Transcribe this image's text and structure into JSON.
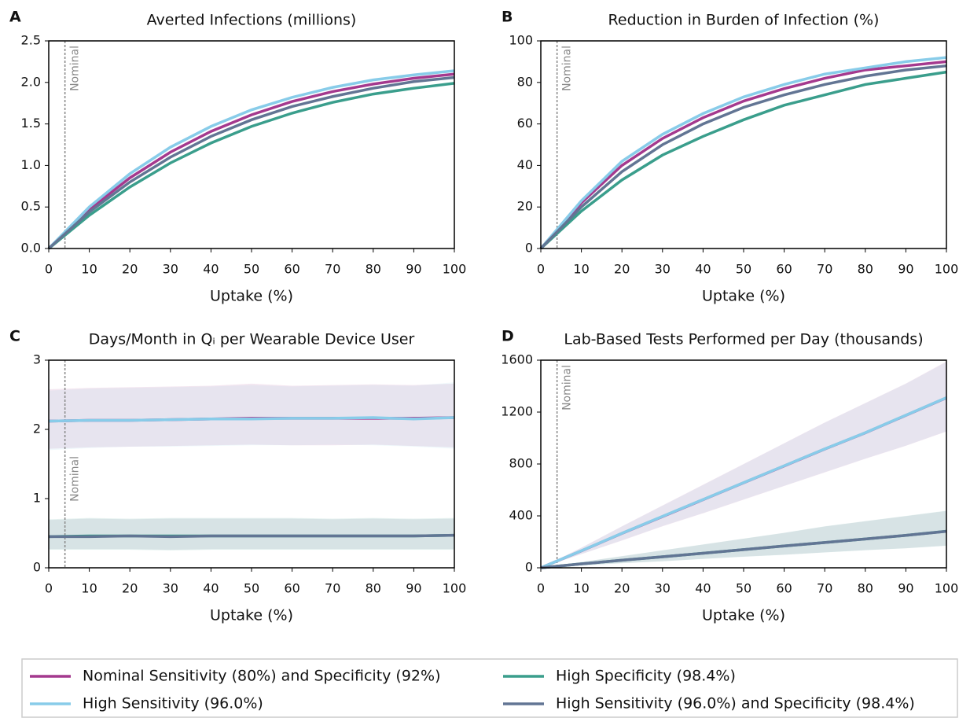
{
  "chart_data": [
    {
      "type": "line",
      "label": "A",
      "title": "Averted Infections (millions)",
      "xlabel": "Uptake (%)",
      "annotation": {
        "x": 4,
        "text": "Nominal"
      },
      "x": [
        0,
        10,
        20,
        30,
        40,
        50,
        60,
        70,
        80,
        90,
        100
      ],
      "xlim": [
        0,
        100
      ],
      "xticks": [
        0,
        10,
        20,
        30,
        40,
        50,
        60,
        70,
        80,
        90,
        100
      ],
      "ylim": [
        0,
        2.5
      ],
      "yticks": [
        {
          "value": 0,
          "label": "0.0"
        },
        0.5,
        {
          "value": 1,
          "label": "1.0"
        },
        1.5,
        {
          "value": 2,
          "label": "2.0"
        },
        2.5
      ],
      "series": [
        {
          "values": [
            0,
            0.47,
            0.85,
            1.16,
            1.41,
            1.61,
            1.77,
            1.89,
            1.98,
            2.05,
            2.1
          ]
        },
        {
          "values": [
            0,
            0.5,
            0.9,
            1.22,
            1.47,
            1.67,
            1.82,
            1.94,
            2.03,
            2.09,
            2.14
          ]
        },
        {
          "values": [
            0,
            0.4,
            0.74,
            1.03,
            1.27,
            1.47,
            1.63,
            1.76,
            1.86,
            1.93,
            1.99
          ]
        },
        {
          "values": [
            0,
            0.44,
            0.8,
            1.1,
            1.35,
            1.55,
            1.71,
            1.83,
            1.93,
            2.01,
            2.06
          ]
        }
      ]
    },
    {
      "type": "line",
      "label": "B",
      "title": "Reduction in Burden of Infection (%)",
      "xlabel": "Uptake (%)",
      "annotation": {
        "x": 4,
        "text": "Nominal"
      },
      "x": [
        0,
        10,
        20,
        30,
        40,
        50,
        60,
        70,
        80,
        90,
        100
      ],
      "xlim": [
        0,
        100
      ],
      "xticks": [
        0,
        10,
        20,
        30,
        40,
        50,
        60,
        70,
        80,
        90,
        100
      ],
      "ylim": [
        0,
        100
      ],
      "yticks": [
        0,
        20,
        40,
        60,
        80,
        100
      ],
      "series": [
        {
          "values": [
            0,
            22,
            40,
            53,
            63,
            71,
            77,
            82,
            86,
            88,
            90
          ]
        },
        {
          "values": [
            0,
            23,
            42,
            55,
            65,
            73,
            79,
            84,
            87,
            90,
            92
          ]
        },
        {
          "values": [
            0,
            18,
            33,
            45,
            54,
            62,
            69,
            74,
            79,
            82,
            85
          ]
        },
        {
          "values": [
            0,
            20,
            37,
            50,
            60,
            68,
            74,
            79,
            83,
            86,
            88
          ]
        }
      ]
    },
    {
      "type": "line",
      "label": "C",
      "title": "Days/Month in Qᵢ per Wearable Device User",
      "xlabel": "Uptake (%)",
      "annotation": {
        "x": 4,
        "text": "Nominal"
      },
      "x": [
        0,
        10,
        20,
        30,
        40,
        50,
        60,
        70,
        80,
        90,
        100
      ],
      "xlim": [
        0,
        100
      ],
      "xticks": [
        0,
        10,
        20,
        30,
        40,
        50,
        60,
        70,
        80,
        90,
        100
      ],
      "ylim": [
        0,
        3
      ],
      "yticks": [
        0,
        1,
        2,
        3
      ],
      "series": [
        {
          "values": [
            2.12,
            2.13,
            2.13,
            2.14,
            2.15,
            2.16,
            2.16,
            2.16,
            2.16,
            2.16,
            2.17
          ],
          "lower": [
            1.72,
            1.74,
            1.75,
            1.76,
            1.77,
            1.78,
            1.77,
            1.77,
            1.78,
            1.76,
            1.74
          ],
          "upper": [
            2.58,
            2.6,
            2.61,
            2.62,
            2.63,
            2.66,
            2.63,
            2.64,
            2.65,
            2.64,
            2.66
          ]
        },
        {
          "values": [
            2.12,
            2.13,
            2.13,
            2.14,
            2.15,
            2.15,
            2.16,
            2.16,
            2.17,
            2.15,
            2.17
          ],
          "lower": [
            1.7,
            1.73,
            1.75,
            1.75,
            1.76,
            1.77,
            1.77,
            1.78,
            1.77,
            1.75,
            1.72
          ],
          "upper": [
            2.56,
            2.59,
            2.6,
            2.61,
            2.62,
            2.64,
            2.62,
            2.63,
            2.64,
            2.63,
            2.68
          ]
        },
        {
          "values": [
            0.45,
            0.46,
            0.46,
            0.46,
            0.46,
            0.46,
            0.46,
            0.46,
            0.46,
            0.46,
            0.47
          ],
          "lower": [
            0.26,
            0.26,
            0.26,
            0.25,
            0.26,
            0.26,
            0.26,
            0.26,
            0.26,
            0.26,
            0.26
          ],
          "upper": [
            0.7,
            0.72,
            0.71,
            0.72,
            0.72,
            0.72,
            0.72,
            0.71,
            0.72,
            0.71,
            0.72
          ]
        },
        {
          "values": [
            0.45,
            0.45,
            0.46,
            0.45,
            0.46,
            0.46,
            0.46,
            0.46,
            0.46,
            0.46,
            0.47
          ],
          "lower": [
            0.27,
            0.27,
            0.27,
            0.26,
            0.27,
            0.27,
            0.27,
            0.27,
            0.27,
            0.27,
            0.27
          ],
          "upper": [
            0.69,
            0.71,
            0.7,
            0.71,
            0.71,
            0.71,
            0.71,
            0.7,
            0.71,
            0.7,
            0.71
          ]
        }
      ]
    },
    {
      "type": "line",
      "label": "D",
      "title": "Lab-Based Tests Performed per Day (thousands)",
      "xlabel": "Uptake (%)",
      "annotation": {
        "x": 4,
        "text": "Nominal"
      },
      "x": [
        0,
        10,
        20,
        30,
        40,
        50,
        60,
        70,
        80,
        90,
        100
      ],
      "xlim": [
        0,
        100
      ],
      "xticks": [
        0,
        10,
        20,
        30,
        40,
        50,
        60,
        70,
        80,
        90,
        100
      ],
      "ylim": [
        0,
        1600
      ],
      "yticks": [
        0,
        400,
        800,
        1200,
        1600
      ],
      "series": [
        {
          "values": [
            0,
            130,
            265,
            395,
            525,
            655,
            785,
            915,
            1040,
            1175,
            1310
          ],
          "lower": [
            0,
            105,
            210,
            320,
            420,
            525,
            630,
            735,
            840,
            940,
            1050
          ],
          "upper": [
            0,
            155,
            320,
            480,
            640,
            800,
            960,
            1120,
            1270,
            1420,
            1590
          ]
        },
        {
          "values": [
            0,
            131,
            266,
            396,
            526,
            656,
            786,
            916,
            1041,
            1176,
            1311
          ],
          "lower": [
            0,
            106,
            212,
            322,
            422,
            527,
            632,
            737,
            842,
            942,
            1052
          ],
          "upper": [
            0,
            154,
            318,
            478,
            638,
            798,
            958,
            1118,
            1268,
            1418,
            1585
          ]
        },
        {
          "values": [
            0,
            30,
            58,
            85,
            112,
            140,
            168,
            195,
            222,
            250,
            282
          ],
          "lower": [
            0,
            18,
            35,
            50,
            68,
            85,
            100,
            118,
            135,
            150,
            170
          ],
          "upper": [
            0,
            45,
            90,
            135,
            180,
            225,
            270,
            320,
            360,
            400,
            440
          ]
        },
        {
          "values": [
            0,
            30,
            58,
            85,
            112,
            140,
            168,
            195,
            222,
            250,
            281
          ],
          "lower": [
            0,
            19,
            36,
            51,
            69,
            86,
            101,
            119,
            136,
            151,
            171
          ],
          "upper": [
            0,
            44,
            89,
            134,
            179,
            224,
            269,
            318,
            358,
            398,
            438
          ]
        }
      ]
    }
  ],
  "legend": {
    "entries": [
      {
        "name": "Nominal Sensitivity (80%) and Specificity (92%)",
        "color": "#a4398e"
      },
      {
        "name": "High Sensitivity (96.0%)",
        "color": "#88cce9"
      },
      {
        "name": "High Specificity (98.4%)",
        "color": "#3a9e8c"
      },
      {
        "name": "High Sensitivity (96.0%) and Specificity (98.4%)",
        "color": "#627594"
      }
    ]
  }
}
